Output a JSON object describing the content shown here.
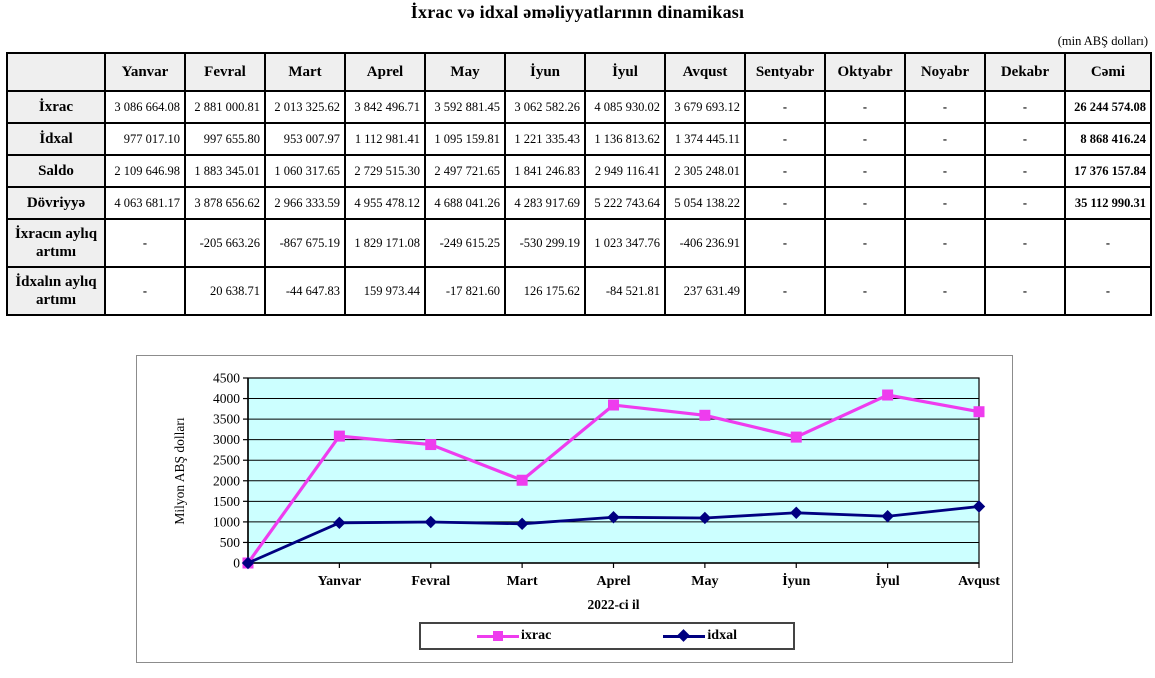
{
  "title": "İxrac və idxal əməliyyatlarının dinamikası",
  "unit_note": "(min ABŞ dolları)",
  "table": {
    "columns": [
      "",
      "Yanvar",
      "Fevral",
      "Mart",
      "Aprel",
      "May",
      "İyun",
      "İyul",
      "Avqust",
      "Sentyabr",
      "Oktyabr",
      "Noyabr",
      "Dekabr",
      "Cəmi"
    ],
    "rows": [
      {
        "label": "İxrac",
        "values": [
          "3 086 664.08",
          "2 881 000.81",
          "2 013 325.62",
          "3 842 496.71",
          "3 592 881.45",
          "3 062 582.26",
          "4 085 930.02",
          "3 679 693.12",
          "-",
          "-",
          "-",
          "-",
          "26 244 574.08"
        ]
      },
      {
        "label": "İdxal",
        "values": [
          "977 017.10",
          "997 655.80",
          "953 007.97",
          "1 112 981.41",
          "1 095 159.81",
          "1 221 335.43",
          "1 136 813.62",
          "1 374 445.11",
          "-",
          "-",
          "-",
          "-",
          "8 868 416.24"
        ]
      },
      {
        "label": "Saldo",
        "values": [
          "2 109 646.98",
          "1 883 345.01",
          "1 060 317.65",
          "2 729 515.30",
          "2 497 721.65",
          "1 841 246.83",
          "2 949 116.41",
          "2 305 248.01",
          "-",
          "-",
          "-",
          "-",
          "17 376 157.84"
        ]
      },
      {
        "label": "Dövriyyə",
        "values": [
          "4 063 681.17",
          "3 878 656.62",
          "2 966 333.59",
          "4 955 478.12",
          "4 688 041.26",
          "4 283 917.69",
          "5 222 743.64",
          "5 054 138.22",
          "-",
          "-",
          "-",
          "-",
          "35 112 990.31"
        ]
      },
      {
        "label": "İxracın aylıq artımı",
        "values": [
          "-",
          "-205 663.26",
          "-867 675.19",
          "1 829 171.08",
          "-249 615.25",
          "-530 299.19",
          "1 023 347.76",
          "-406 236.91",
          "-",
          "-",
          "-",
          "-",
          "-"
        ]
      },
      {
        "label": "İdxalın aylıq artımı",
        "values": [
          "-",
          "20 638.71",
          "-44 647.83",
          "159 973.44",
          "-17 821.60",
          "126 175.62",
          "-84 521.81",
          "237 631.49",
          "-",
          "-",
          "-",
          "-",
          "-"
        ]
      }
    ]
  },
  "chart_data": {
    "type": "line",
    "title": "",
    "xlabel": "2022-ci il",
    "ylabel": "Milyon ABŞ dolları",
    "ylim": [
      0,
      4500
    ],
    "ytick_step": 500,
    "grid": true,
    "legend_position": "bottom",
    "plot_bg": "#ccffff",
    "categories": [
      "",
      "Yanvar",
      "Fevral",
      "Mart",
      "Aprel",
      "May",
      "İyun",
      "İyul",
      "Avqust"
    ],
    "series": [
      {
        "name": "ixrac",
        "marker": "square",
        "color": "#ee3cee",
        "values": [
          0,
          3086.66,
          2881.0,
          2013.33,
          3842.5,
          3592.88,
          3062.58,
          4085.93,
          3679.69
        ]
      },
      {
        "name": "idxal",
        "marker": "diamond",
        "color": "#000080",
        "values": [
          0,
          977.02,
          997.66,
          953.01,
          1112.98,
          1095.16,
          1221.34,
          1136.81,
          1374.45
        ]
      }
    ]
  },
  "colors": {
    "table_header_bg": "#efefef",
    "grid_line": "#000000",
    "chart_frame": "#8c8c8c"
  }
}
